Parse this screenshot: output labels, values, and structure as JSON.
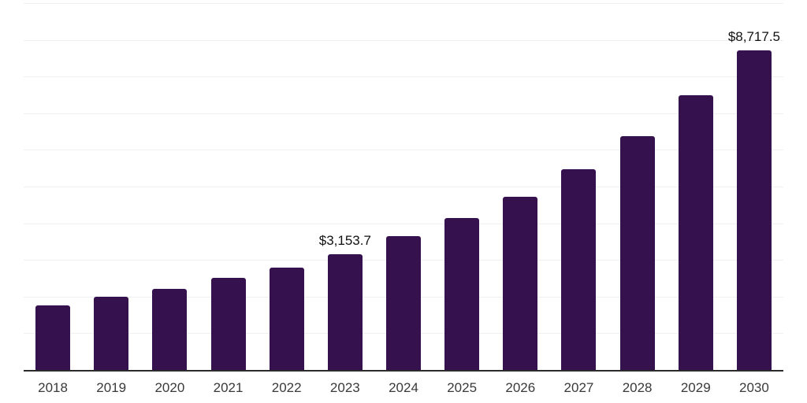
{
  "chart_data": {
    "type": "bar",
    "title": "",
    "xlabel": "",
    "ylabel": "",
    "categories": [
      "2018",
      "2019",
      "2020",
      "2021",
      "2022",
      "2023",
      "2024",
      "2025",
      "2026",
      "2027",
      "2028",
      "2029",
      "2030"
    ],
    "values": [
      1770,
      1990,
      2215,
      2515,
      2800,
      3153.7,
      3645,
      4145,
      4730,
      5480,
      6380,
      7485,
      8717.5
    ],
    "data_labels": [
      {
        "category": "2023",
        "text": "$3,153.7"
      },
      {
        "category": "2030",
        "text": "$8,717.5"
      }
    ],
    "ylim": [
      0,
      10000
    ],
    "grid_step": 1000,
    "grid": true,
    "legend": "none",
    "colors": {
      "bar": "#35114d",
      "axis": "#2b2b2b",
      "gridline": "#f0f0f1",
      "tick_label": "#3a3a3a",
      "data_label": "#111111",
      "background": "#ffffff"
    }
  }
}
